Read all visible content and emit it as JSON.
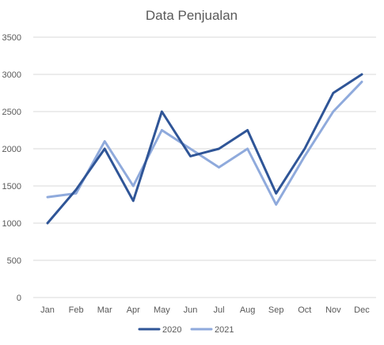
{
  "chart_data": {
    "type": "line",
    "title": "Data Penjualan",
    "xlabel": "",
    "ylabel": "",
    "categories": [
      "Jan",
      "Feb",
      "Mar",
      "Apr",
      "May",
      "Jun",
      "Jul",
      "Aug",
      "Sep",
      "Oct",
      "Nov",
      "Dec"
    ],
    "ylim": [
      0,
      3500
    ],
    "yticks": [
      0,
      500,
      1000,
      1500,
      2000,
      2500,
      3000,
      3500
    ],
    "grid": true,
    "legend": "bottom",
    "series": [
      {
        "name": "2020",
        "color": "#2f5597",
        "values": [
          1000,
          1450,
          2000,
          1300,
          2500,
          1900,
          2000,
          2250,
          1400,
          2000,
          2750,
          3000
        ]
      },
      {
        "name": "2021",
        "color": "#8faadc",
        "values": [
          1350,
          1400,
          2100,
          1500,
          2250,
          2000,
          1750,
          2000,
          1250,
          1900,
          2500,
          2900
        ]
      }
    ]
  }
}
